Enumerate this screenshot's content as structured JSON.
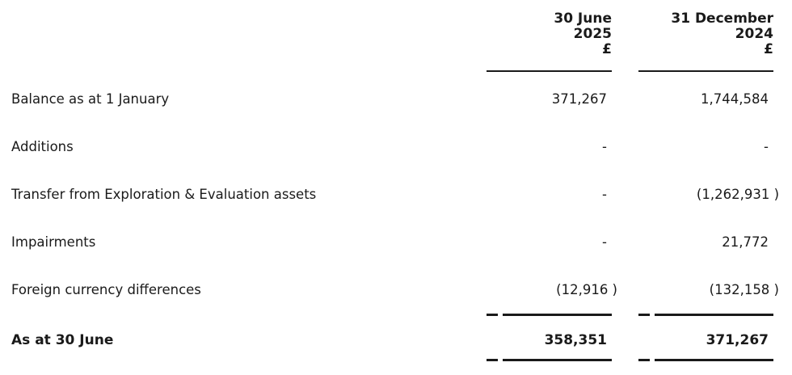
{
  "table": {
    "columns": [
      {
        "line1": "30 June",
        "line2": "2025",
        "currency": "£"
      },
      {
        "line1": "31 December",
        "line2": "2024",
        "currency": "£"
      }
    ],
    "rows": [
      {
        "label": "Balance as at 1 January",
        "v2025": "371,267",
        "v2024": "1,744,584"
      },
      {
        "label": "Additions",
        "v2025": "-",
        "v2024": "-"
      },
      {
        "label": "Transfer from Exploration & Evaluation assets",
        "v2025": "-",
        "v2024": "(1,262,931 )"
      },
      {
        "label": "Impairments",
        "v2025": "-",
        "v2024": "21,772"
      },
      {
        "label": "Foreign currency differences",
        "v2025": "(12,916 )",
        "v2024": "(132,158 )"
      }
    ],
    "total": {
      "label": "As at 30 June",
      "v2025": "358,351",
      "v2024": "371,267"
    },
    "colors": {
      "text": "#1a1a1a",
      "rule": "#1a1a1a",
      "background": "#ffffff"
    }
  }
}
